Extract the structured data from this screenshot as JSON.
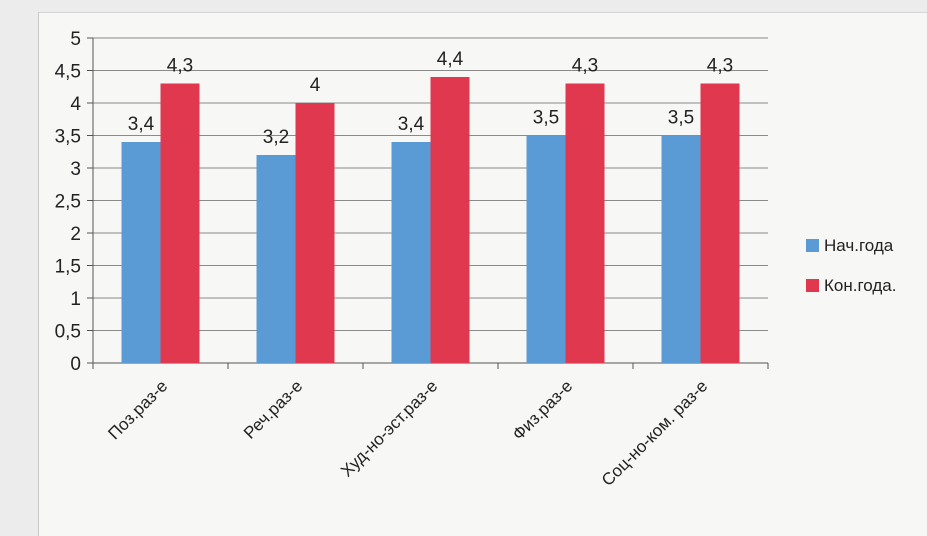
{
  "chart_data": {
    "type": "bar",
    "categories": [
      "Поз.раз-е",
      "Реч.раз-е",
      "Худ-но-эст.раз-е",
      "Физ.раз-е",
      "Соц-но-ком. раз-е"
    ],
    "series": [
      {
        "name": "Нач.года",
        "values": [
          3.4,
          3.2,
          3.4,
          3.5,
          3.5
        ],
        "labels": [
          "3,4",
          "3,2",
          "3,4",
          "3,5",
          "3,5"
        ],
        "color": "#5b9bd5"
      },
      {
        "name": "Кон.года.",
        "values": [
          4.3,
          4,
          4.4,
          4.3,
          4.3
        ],
        "labels": [
          "4,3",
          "4",
          "4,4",
          "4,3",
          "4,3"
        ],
        "color": "#e0394f"
      }
    ],
    "ylim": [
      0,
      5
    ],
    "yticks": [
      "0",
      "0,5",
      "1",
      "1,5",
      "2",
      "2,5",
      "3",
      "3,5",
      "4",
      "4,5",
      "5"
    ],
    "grid": true,
    "legend_position": "right"
  }
}
